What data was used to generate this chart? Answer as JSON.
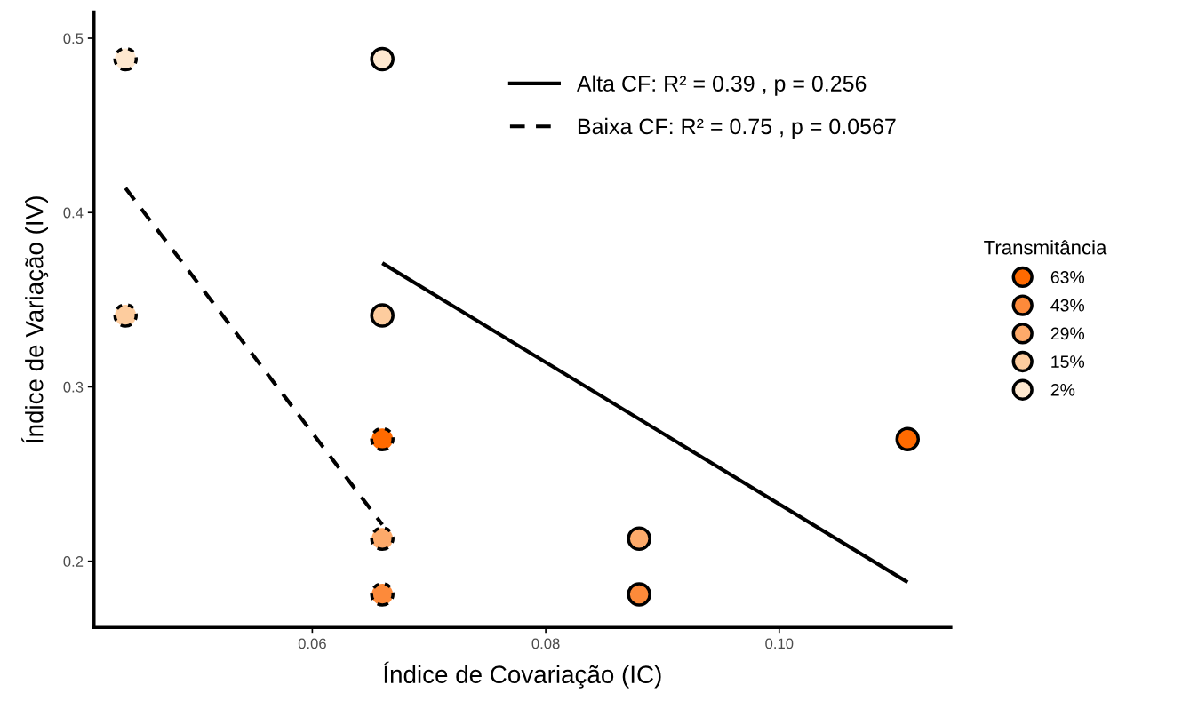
{
  "chart_data": {
    "type": "scatter",
    "xlabel": "Índice de Covariação (IC)",
    "ylabel": "Índice de Variação (IV)",
    "legend_title": "Transmitância",
    "xlim": [
      0.0413,
      0.1147
    ],
    "ylim": [
      0.162,
      0.515
    ],
    "xticks": [
      {
        "value": 0.06,
        "label": "0.06"
      },
      {
        "value": 0.08,
        "label": "0.08"
      },
      {
        "value": 0.1,
        "label": "0.10"
      }
    ],
    "yticks": [
      0.2,
      0.3,
      0.4,
      0.5
    ],
    "grid": false,
    "legend": "right",
    "series": [
      {
        "name": "63%",
        "marker": "circle",
        "color": "#ff6a00",
        "x": [
          0.066,
          0.111
        ],
        "values": [
          0.27,
          0.27
        ],
        "line_style": [
          "dashed",
          "solid"
        ]
      },
      {
        "name": "43%",
        "marker": "circle",
        "color": "#fd8a3a",
        "x": [
          0.066,
          0.088
        ],
        "values": [
          0.181,
          0.181
        ],
        "line_style": [
          "dashed",
          "solid"
        ]
      },
      {
        "name": "29%",
        "marker": "circle",
        "color": "#fdaa6a",
        "x": [
          0.066,
          0.088
        ],
        "values": [
          0.213,
          0.213
        ],
        "line_style": [
          "dashed",
          "solid"
        ]
      },
      {
        "name": "15%",
        "marker": "circle",
        "color": "#fdcc9e",
        "x": [
          0.044,
          0.066
        ],
        "values": [
          0.341,
          0.341
        ],
        "line_style": [
          "dashed",
          "solid"
        ]
      },
      {
        "name": "2%",
        "marker": "circle",
        "color": "#fee8cf",
        "x": [
          0.044,
          0.066
        ],
        "values": [
          0.488,
          0.488
        ],
        "line_style": [
          "dashed",
          "solid"
        ]
      },
      {
        "type": "line",
        "name": "Alta CF: R² = 0.39 , p = 0.256",
        "color": "#000000",
        "x": [
          0.066,
          0.111
        ],
        "values": [
          0.371,
          0.188
        ],
        "line_style": "solid",
        "marker": "none"
      },
      {
        "type": "line",
        "name": "Baixa CF: R² = 0.75 , p = 0.0567",
        "color": "#000000",
        "x": [
          0.044,
          0.066
        ],
        "values": [
          0.414,
          0.221
        ],
        "line_style": "dashed",
        "marker": "none"
      }
    ]
  }
}
